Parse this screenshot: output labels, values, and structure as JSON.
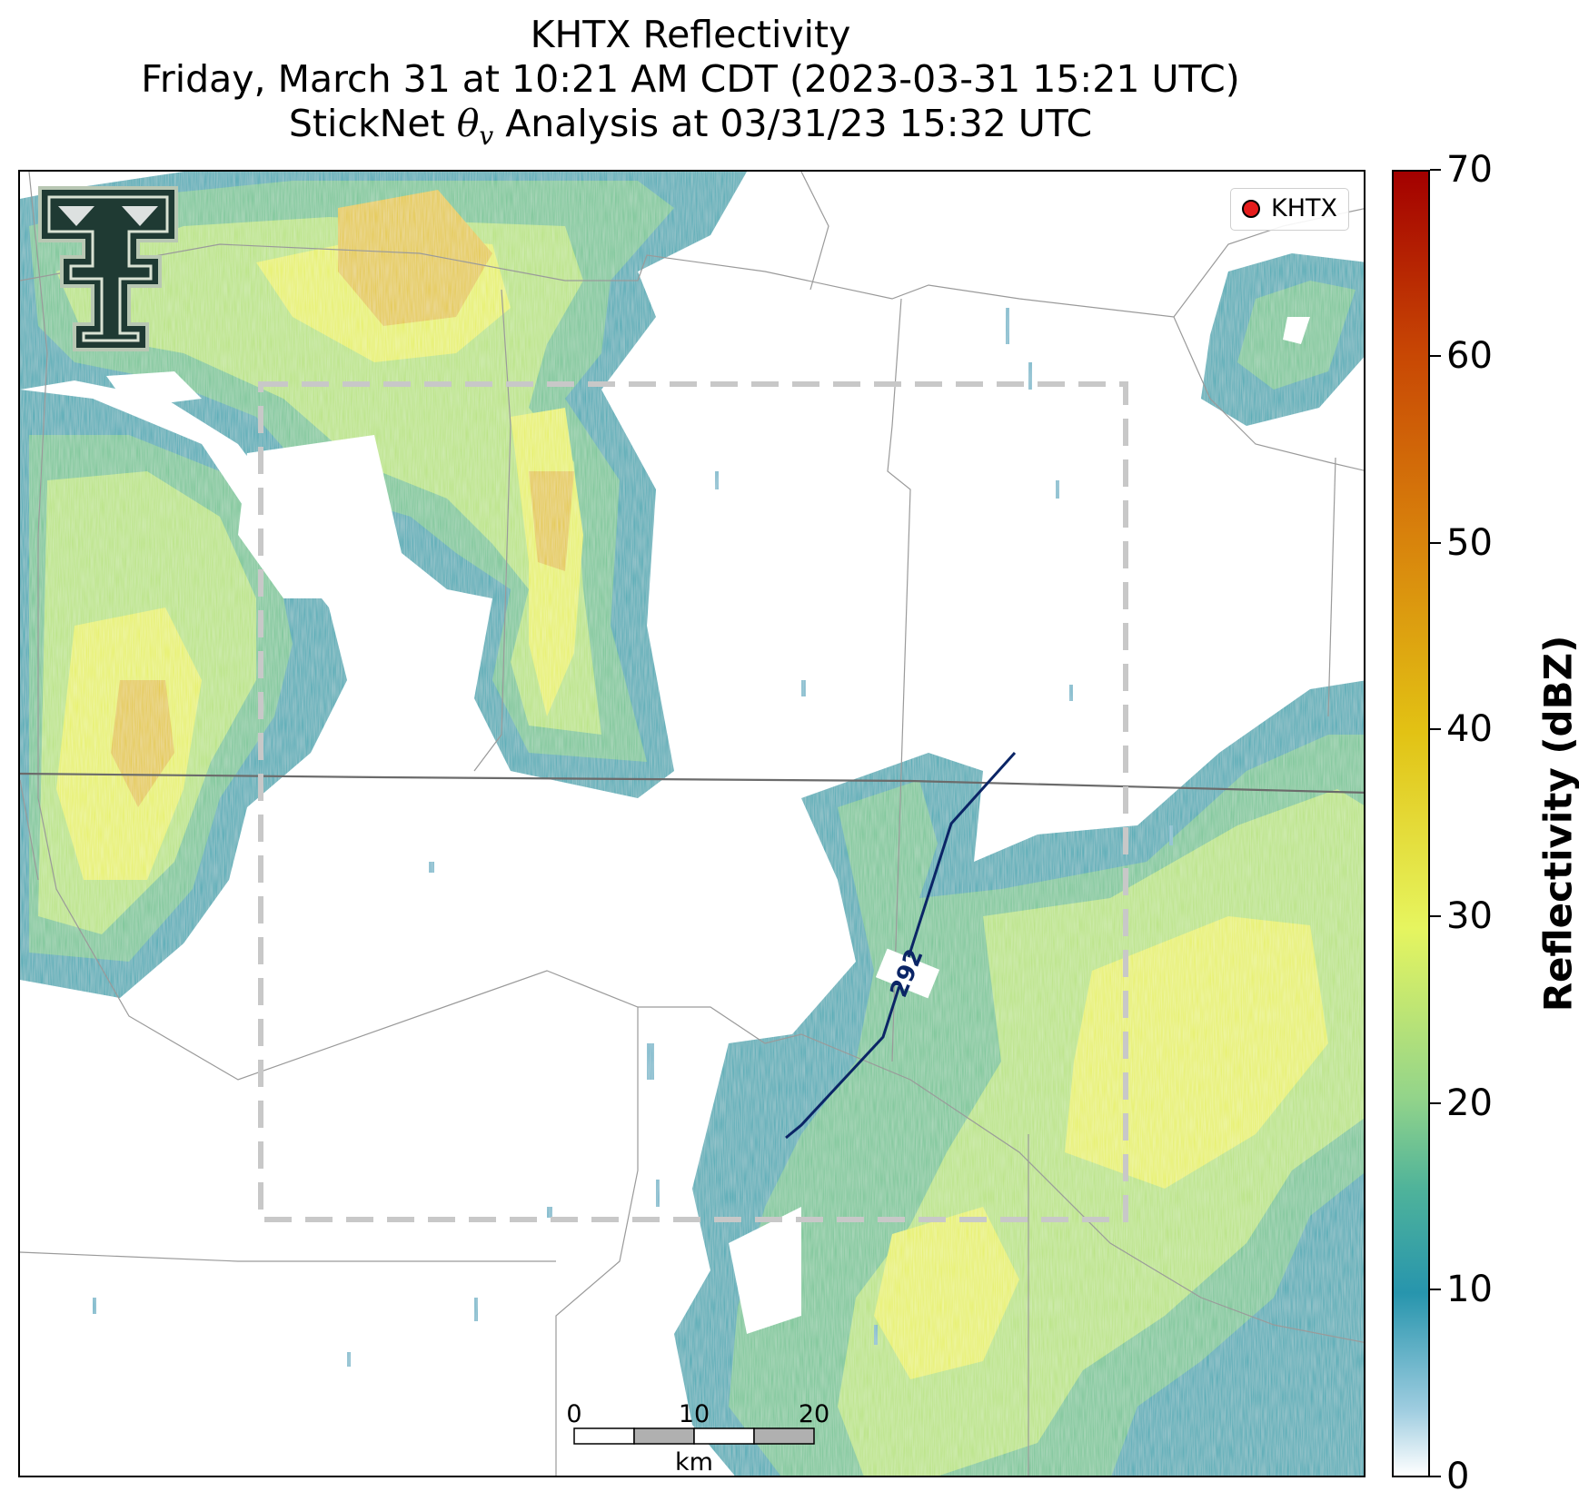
{
  "title": {
    "line1": "KHTX Reflectivity",
    "line2": "Friday, March 31 at 10:21 AM CDT (2023-03-31 15:21 UTC)",
    "line3_prefix": "StickNet ",
    "theta": "θ",
    "theta_sub": "v",
    "line3_suffix": " Analysis at 03/31/23 15:32 UTC"
  },
  "legend": {
    "label": "KHTX",
    "marker_color": "#e51c1c"
  },
  "contour": {
    "label": "292",
    "color": "#0b2566"
  },
  "scalebar": {
    "ticks": [
      "0",
      "10",
      "20"
    ],
    "unit": "km"
  },
  "colorbar": {
    "label": "Reflectivity (dBZ)",
    "ticks": [
      "0",
      "10",
      "20",
      "30",
      "40",
      "50",
      "60",
      "70"
    ],
    "min": 0,
    "max": 70
  },
  "logo": {
    "name": "Texas Tech double-T logo"
  }
}
